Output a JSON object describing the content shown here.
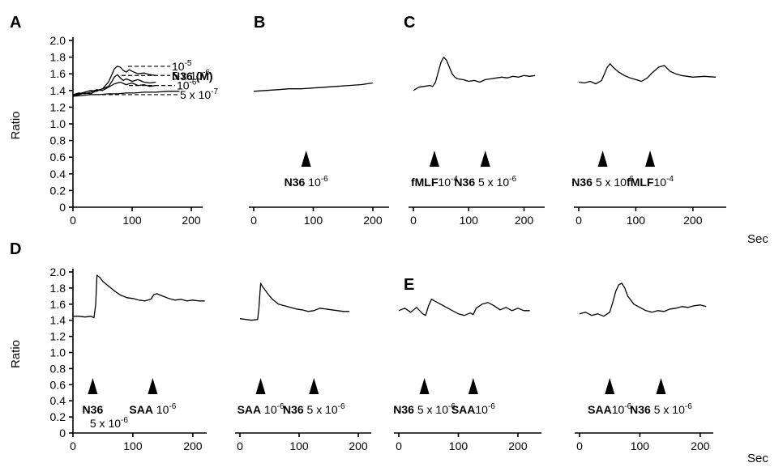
{
  "figure": {
    "unit_label": "Sec",
    "axis_title": "Ratio",
    "panel_letters": [
      "A",
      "B",
      "C",
      "D",
      "E"
    ]
  },
  "chart_data": [
    {
      "id": "A",
      "type": "line",
      "letter": "A",
      "ylabel": "Ratio",
      "xlim": [
        0,
        215
      ],
      "ylim": [
        0,
        2.0
      ],
      "xticks": [
        0,
        100,
        200
      ],
      "yticks": [
        0,
        0.2,
        0.4,
        0.6,
        0.8,
        1.0,
        1.2,
        1.4,
        1.6,
        1.8,
        2.0
      ],
      "ytick_labels": [
        "0",
        "0.2",
        "0.4",
        "0.6",
        "0.8",
        "1.0",
        "1.2",
        "1.4",
        "1.6",
        "1.8",
        "2.0"
      ],
      "legend_title": "N36 (M)",
      "series": [
        {
          "name": "10-5",
          "x": [
            0,
            10,
            20,
            30,
            40,
            50,
            55,
            60,
            65,
            70,
            75,
            80,
            85,
            90,
            95,
            100,
            110,
            120,
            130,
            140
          ],
          "y": [
            1.33,
            1.35,
            1.37,
            1.36,
            1.4,
            1.42,
            1.46,
            1.5,
            1.58,
            1.66,
            1.69,
            1.68,
            1.64,
            1.62,
            1.65,
            1.63,
            1.6,
            1.61,
            1.59,
            1.58
          ]
        },
        {
          "name": "5 x 10-6",
          "x": [
            0,
            10,
            20,
            30,
            40,
            50,
            60,
            65,
            70,
            75,
            80,
            85,
            90,
            100,
            110,
            120,
            130,
            140
          ],
          "y": [
            1.34,
            1.36,
            1.38,
            1.4,
            1.39,
            1.42,
            1.45,
            1.5,
            1.56,
            1.59,
            1.55,
            1.52,
            1.54,
            1.51,
            1.53,
            1.5,
            1.49,
            1.5
          ]
        },
        {
          "name": "10-6",
          "x": [
            0,
            10,
            20,
            30,
            40,
            50,
            60,
            70,
            80,
            90,
            100,
            110,
            120,
            130,
            140
          ],
          "y": [
            1.35,
            1.37,
            1.36,
            1.38,
            1.41,
            1.4,
            1.44,
            1.48,
            1.5,
            1.47,
            1.49,
            1.46,
            1.47,
            1.45,
            1.46
          ]
        },
        {
          "name": "5 x 10-7",
          "x": [
            0,
            15,
            30,
            45,
            60,
            75,
            90,
            105,
            120,
            140,
            160,
            180
          ],
          "y": [
            1.33,
            1.34,
            1.35,
            1.35,
            1.36,
            1.36,
            1.37,
            1.37,
            1.38,
            1.38,
            1.39,
            1.39
          ]
        }
      ],
      "labels": [
        {
          "base": "10",
          "exp": "-5",
          "y": 1.69,
          "x_data": 78
        },
        {
          "base": "5 x 10",
          "exp": "-6",
          "y": 1.58,
          "x_data": 72
        },
        {
          "base": "10",
          "exp": "-6",
          "y": 1.46,
          "x_data": 82
        },
        {
          "base": "5 x 10",
          "exp": "-7",
          "y": 1.35,
          "x_data": 40
        }
      ]
    },
    {
      "id": "B",
      "type": "line",
      "letter": "B",
      "xlim": [
        0,
        215
      ],
      "ylim": [
        0,
        2.0
      ],
      "xticks": [
        0,
        100,
        200
      ],
      "series": [
        {
          "name": "",
          "x": [
            0,
            20,
            40,
            60,
            80,
            100,
            120,
            140,
            160,
            180,
            200
          ],
          "y": [
            1.39,
            1.4,
            1.41,
            1.42,
            1.42,
            1.43,
            1.44,
            1.45,
            1.46,
            1.47,
            1.49
          ]
        }
      ],
      "arrows": [
        {
          "x": 88,
          "bold": "N36",
          "text": " 10",
          "exp": "-6"
        }
      ]
    },
    {
      "id": "C1",
      "type": "line",
      "letter": "C",
      "xlim": [
        0,
        230
      ],
      "ylim": [
        0,
        2.0
      ],
      "xticks": [
        0,
        100,
        200
      ],
      "series": [
        {
          "name": "",
          "x": [
            0,
            10,
            20,
            30,
            35,
            40,
            45,
            50,
            55,
            60,
            65,
            70,
            75,
            80,
            90,
            100,
            110,
            120,
            130,
            140,
            150,
            160,
            170,
            180,
            190,
            200,
            210,
            220
          ],
          "y": [
            1.4,
            1.44,
            1.45,
            1.46,
            1.45,
            1.5,
            1.62,
            1.74,
            1.8,
            1.76,
            1.68,
            1.6,
            1.56,
            1.54,
            1.53,
            1.51,
            1.52,
            1.5,
            1.53,
            1.54,
            1.55,
            1.56,
            1.55,
            1.57,
            1.56,
            1.58,
            1.57,
            1.58
          ]
        }
      ],
      "arrows": [
        {
          "x": 38,
          "bold": "fMLF",
          "text": "10",
          "exp": "-4"
        },
        {
          "x": 130,
          "bold": "N36",
          "text": " 5 x 10",
          "exp": "-6"
        }
      ]
    },
    {
      "id": "C2",
      "type": "line",
      "letter": "",
      "xlim": [
        0,
        240
      ],
      "ylim": [
        0,
        2.0
      ],
      "xticks": [
        0,
        100,
        200
      ],
      "series": [
        {
          "name": "",
          "x": [
            0,
            10,
            20,
            30,
            40,
            45,
            50,
            55,
            60,
            70,
            80,
            90,
            100,
            110,
            120,
            130,
            140,
            150,
            160,
            170,
            180,
            200,
            220,
            240
          ],
          "y": [
            1.5,
            1.49,
            1.51,
            1.48,
            1.52,
            1.6,
            1.68,
            1.72,
            1.68,
            1.62,
            1.58,
            1.55,
            1.53,
            1.51,
            1.55,
            1.62,
            1.68,
            1.7,
            1.63,
            1.6,
            1.58,
            1.56,
            1.57,
            1.56
          ]
        }
      ],
      "arrows": [
        {
          "x": 42,
          "bold": "N36",
          "text": " 5 x 10",
          "exp": "-6"
        },
        {
          "x": 125,
          "bold": "fMLF",
          "text": "10",
          "exp": "-4"
        }
      ]
    },
    {
      "id": "D1",
      "type": "line",
      "letter": "D",
      "ylabel": "Ratio",
      "xlim": [
        0,
        215
      ],
      "ylim": [
        0,
        2.0
      ],
      "xticks": [
        0,
        100,
        200
      ],
      "yticks": [
        0,
        0.2,
        0.4,
        0.6,
        0.8,
        1.0,
        1.2,
        1.4,
        1.6,
        1.8,
        2.0
      ],
      "ytick_labels": [
        "0",
        "0.2",
        "0.4",
        "0.6",
        "0.8",
        "1.0",
        "1.2",
        "1.4",
        "1.6",
        "1.8",
        "2.0"
      ],
      "series": [
        {
          "name": "",
          "x": [
            0,
            10,
            20,
            30,
            35,
            38,
            40,
            45,
            50,
            60,
            70,
            80,
            90,
            100,
            110,
            120,
            130,
            135,
            140,
            150,
            160,
            170,
            180,
            190,
            200,
            210,
            220
          ],
          "y": [
            1.45,
            1.45,
            1.44,
            1.45,
            1.43,
            1.6,
            1.96,
            1.93,
            1.88,
            1.82,
            1.76,
            1.71,
            1.68,
            1.67,
            1.65,
            1.64,
            1.66,
            1.72,
            1.73,
            1.7,
            1.67,
            1.65,
            1.66,
            1.64,
            1.65,
            1.64,
            1.64
          ]
        }
      ],
      "arrows": [
        {
          "x": 33,
          "bold": "N36",
          "text": "",
          "exp": "",
          "line2": "5 x 10",
          "line2_exp": "-6"
        },
        {
          "x": 133,
          "bold": "SAA",
          "text": " 10",
          "exp": "-6"
        }
      ]
    },
    {
      "id": "D2",
      "type": "line",
      "letter": "",
      "xlim": [
        0,
        215
      ],
      "ylim": [
        0,
        2.0
      ],
      "xticks": [
        0,
        100,
        200
      ],
      "series": [
        {
          "name": "",
          "x": [
            0,
            10,
            20,
            30,
            32,
            35,
            38,
            42,
            48,
            55,
            65,
            75,
            85,
            95,
            105,
            115,
            125,
            135,
            145,
            155,
            165,
            175,
            185
          ],
          "y": [
            1.42,
            1.41,
            1.4,
            1.41,
            1.55,
            1.86,
            1.82,
            1.78,
            1.72,
            1.66,
            1.6,
            1.58,
            1.56,
            1.54,
            1.53,
            1.51,
            1.52,
            1.55,
            1.54,
            1.53,
            1.52,
            1.51,
            1.51
          ]
        }
      ],
      "arrows": [
        {
          "x": 35,
          "bold": "SAA",
          "text": " 10",
          "exp": "-6"
        },
        {
          "x": 125,
          "bold": "N36",
          "text": " 5 x 10",
          "exp": "-6"
        }
      ]
    },
    {
      "id": "E1",
      "type": "line",
      "letter": "E",
      "xlim": [
        0,
        230
      ],
      "ylim": [
        0,
        2.0
      ],
      "xticks": [
        0,
        100,
        200
      ],
      "series": [
        {
          "name": "",
          "x": [
            0,
            10,
            20,
            30,
            40,
            45,
            50,
            55,
            60,
            70,
            80,
            90,
            100,
            110,
            120,
            125,
            130,
            140,
            150,
            160,
            170,
            180,
            190,
            200,
            210,
            220
          ],
          "y": [
            1.52,
            1.55,
            1.5,
            1.56,
            1.48,
            1.46,
            1.58,
            1.66,
            1.64,
            1.6,
            1.56,
            1.52,
            1.48,
            1.46,
            1.49,
            1.47,
            1.55,
            1.6,
            1.62,
            1.58,
            1.53,
            1.56,
            1.52,
            1.55,
            1.52,
            1.52
          ]
        }
      ],
      "arrows": [
        {
          "x": 43,
          "bold": "N36",
          "text": " 5 x 10",
          "exp": "-6"
        },
        {
          "x": 125,
          "bold": "SAA",
          "text": "10",
          "exp": "-6"
        }
      ]
    },
    {
      "id": "E2",
      "type": "line",
      "letter": "",
      "xlim": [
        0,
        215
      ],
      "ylim": [
        0,
        2.0
      ],
      "xticks": [
        0,
        100,
        200
      ],
      "series": [
        {
          "name": "",
          "x": [
            0,
            10,
            20,
            30,
            40,
            50,
            55,
            60,
            65,
            70,
            75,
            80,
            90,
            100,
            110,
            120,
            130,
            140,
            150,
            160,
            170,
            180,
            190,
            200,
            210
          ],
          "y": [
            1.48,
            1.5,
            1.46,
            1.48,
            1.45,
            1.5,
            1.62,
            1.76,
            1.84,
            1.86,
            1.8,
            1.7,
            1.6,
            1.56,
            1.52,
            1.5,
            1.52,
            1.51,
            1.54,
            1.55,
            1.57,
            1.56,
            1.58,
            1.59,
            1.57
          ]
        }
      ],
      "arrows": [
        {
          "x": 50,
          "bold": "SAA",
          "text": "10",
          "exp": "-6"
        },
        {
          "x": 135,
          "bold": "N36",
          "text": " 5 x 10",
          "exp": "-6"
        }
      ]
    }
  ]
}
